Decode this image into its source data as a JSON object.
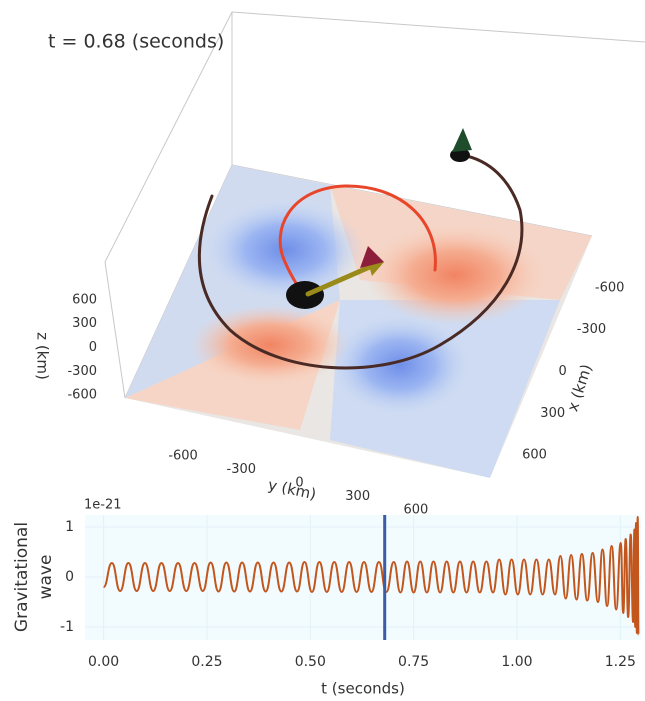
{
  "chart_data": [
    {
      "type": "3d",
      "annotation": "t = 0.68 (seconds)",
      "xlabel": "x (km)",
      "ylabel": "y (km)",
      "zlabel": "z (km)",
      "xlim": [
        -750,
        750
      ],
      "ylim": [
        -750,
        750
      ],
      "zlim": [
        -750,
        750
      ],
      "xticks": [
        -600,
        -300,
        0,
        300,
        600
      ],
      "yticks": [
        -600,
        -300,
        0,
        300,
        600
      ],
      "zticks": [
        -600,
        -300,
        0,
        300,
        600
      ]
    },
    {
      "type": "line",
      "ylabel": [
        "Gravitational",
        "wave"
      ],
      "offset_text": "1e-21",
      "xlabel": "t (seconds)",
      "x": [
        0.0,
        0.02,
        0.04,
        0.06,
        0.08,
        0.1,
        0.12,
        0.14,
        0.16,
        0.18,
        0.2,
        0.22,
        0.24,
        0.259,
        0.278,
        0.297,
        0.316,
        0.335,
        0.354,
        0.373,
        0.392,
        0.411,
        0.43,
        0.449,
        0.468,
        0.486,
        0.504,
        0.522,
        0.54,
        0.558,
        0.576,
        0.594,
        0.612,
        0.63,
        0.648,
        0.666,
        0.684,
        0.702,
        0.718,
        0.734,
        0.75,
        0.766,
        0.782,
        0.798,
        0.814,
        0.83,
        0.846,
        0.862,
        0.878,
        0.894,
        0.91,
        0.926,
        0.942,
        0.957,
        0.972,
        0.987,
        1.002,
        1.017,
        1.032,
        1.047,
        1.062,
        1.077,
        1.092,
        1.105,
        1.118,
        1.131,
        1.144,
        1.157,
        1.17,
        1.183,
        1.196,
        1.207,
        1.218,
        1.229,
        1.24,
        1.251,
        1.257,
        1.263,
        1.269,
        1.275,
        1.281,
        1.284,
        1.286,
        1.288,
        1.29,
        1.292,
        1.294
      ],
      "series": [
        {
          "color": "#c2561d",
          "values": [
            -0.2,
            0.28,
            -0.28,
            0.28,
            -0.28,
            0.28,
            -0.28,
            0.28,
            -0.28,
            0.28,
            -0.28,
            0.28,
            -0.28,
            0.29,
            -0.29,
            0.29,
            -0.29,
            0.29,
            -0.29,
            0.29,
            -0.29,
            0.29,
            -0.29,
            0.29,
            -0.29,
            0.3,
            -0.3,
            0.3,
            -0.3,
            0.3,
            -0.3,
            0.3,
            -0.3,
            0.3,
            -0.3,
            0.3,
            -0.3,
            0.3,
            -0.31,
            0.31,
            -0.31,
            0.31,
            -0.31,
            0.31,
            -0.31,
            0.31,
            -0.31,
            0.31,
            -0.31,
            0.31,
            -0.31,
            0.31,
            -0.31,
            0.35,
            -0.35,
            0.35,
            -0.35,
            0.35,
            -0.35,
            0.35,
            -0.35,
            0.35,
            -0.35,
            0.42,
            -0.43,
            0.44,
            -0.45,
            0.46,
            -0.47,
            0.48,
            -0.5,
            0.55,
            -0.58,
            0.62,
            -0.65,
            0.68,
            -0.72,
            0.76,
            -0.8,
            0.85,
            -0.9,
            0.95,
            -1.0,
            1.08,
            -1.12,
            1.2,
            -1.15
          ]
        }
      ],
      "xlim": [
        -0.045,
        1.3
      ],
      "ylim": [
        -1.26,
        1.24
      ],
      "xticks": [
        {
          "value": 0,
          "label": "0.00"
        },
        {
          "value": 0.25,
          "label": "0.25"
        },
        {
          "value": 0.5,
          "label": "0.50"
        },
        {
          "value": 0.75,
          "label": "0.75"
        },
        {
          "value": 1,
          "label": "1.00"
        },
        {
          "value": 1.25,
          "label": "1.25"
        }
      ],
      "yticks": [
        -1,
        0,
        1
      ],
      "grid": true,
      "marker_x": 0.68,
      "marker_color": "#3b5ca6"
    }
  ]
}
